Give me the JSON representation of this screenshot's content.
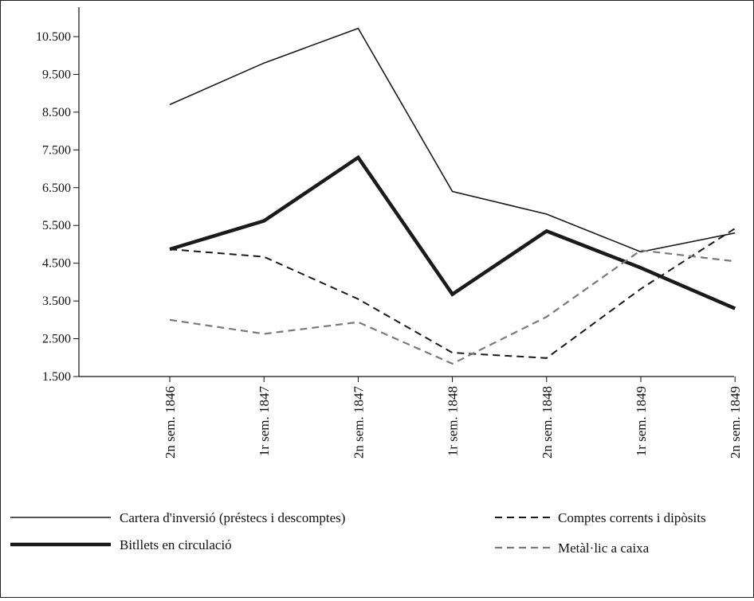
{
  "chart_data": {
    "type": "line",
    "title": "",
    "xlabel": "",
    "ylabel": "",
    "categories": [
      "2n sem. 1846",
      "1r sem. 1847",
      "2n sem. 1847",
      "1r sem. 1848",
      "2n sem. 1848",
      "1r sem. 1849",
      "2n sem. 1849"
    ],
    "yticks": [
      "1.500",
      "2.500",
      "3.500",
      "4.500",
      "5.500",
      "6.500",
      "7.500",
      "8.500",
      "9.500",
      "10.500"
    ],
    "ylim": [
      1500,
      11000
    ],
    "grid": false,
    "legend_position": "bottom",
    "series": [
      {
        "name": "Cartera d'inversió (préstecs i descomptes)",
        "values": [
          8700,
          9800,
          10720,
          6400,
          5800,
          4800,
          5300
        ],
        "color": "#1a1a1a",
        "style": "solid-thin"
      },
      {
        "name": "Comptes corrents i dipòsits",
        "values": [
          4870,
          4670,
          3550,
          2130,
          1990,
          3820,
          5420
        ],
        "color": "#1a1a1a",
        "style": "dashed"
      },
      {
        "name": "Bitllets en circulació",
        "values": [
          4870,
          5620,
          7300,
          3680,
          5350,
          4380,
          3300
        ],
        "color": "#1a1a1a",
        "style": "solid-thick"
      },
      {
        "name": "Metàl·lic a caixa",
        "values": [
          3000,
          2630,
          2940,
          1840,
          3080,
          4840,
          4550
        ],
        "color": "#7a7a7a",
        "style": "dashed-gray"
      }
    ]
  }
}
